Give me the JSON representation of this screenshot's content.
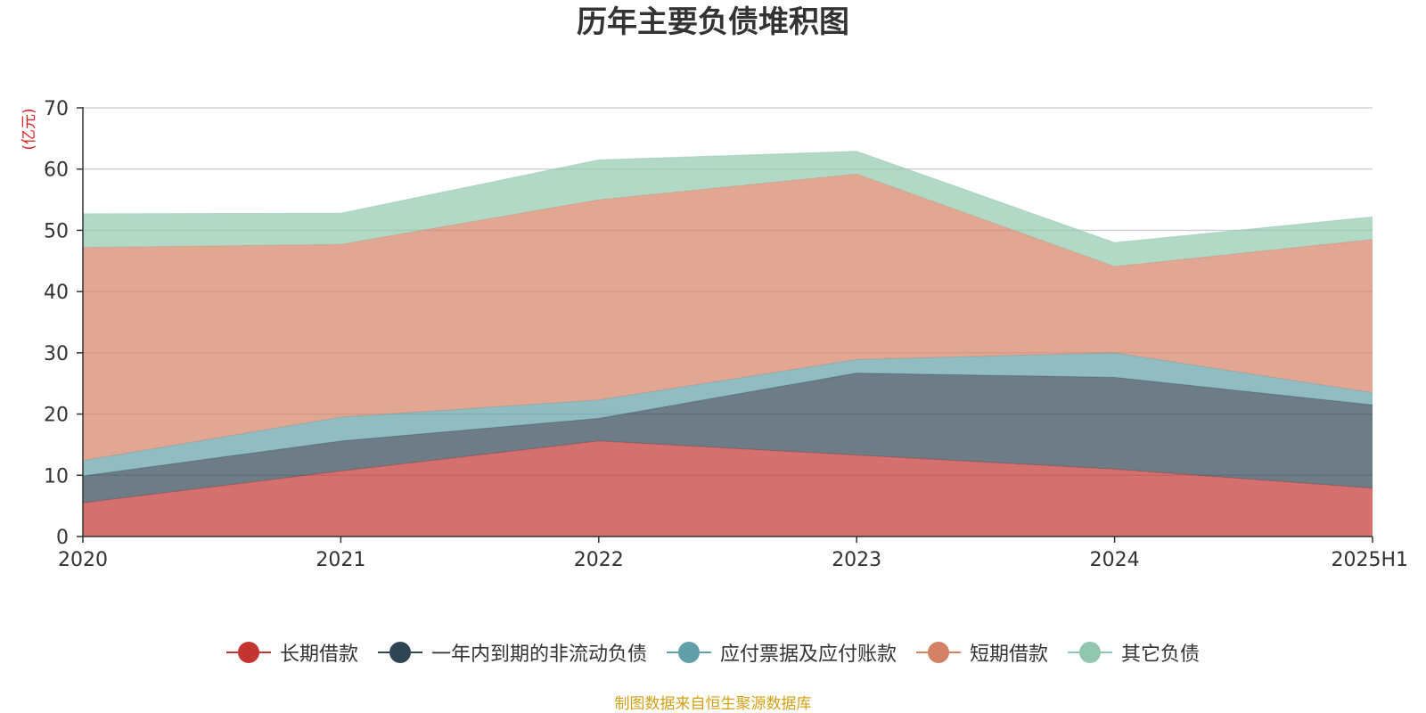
{
  "colors": {
    "unit": "#e02020",
    "source": "#d4a017",
    "axis": "#333333",
    "grid": "#cccccc"
  },
  "chart_data": {
    "type": "area",
    "stacked": true,
    "title": "历年主要负债堆积图",
    "ylabel": "(亿元)",
    "categories": [
      "2020",
      "2021",
      "2022",
      "2023",
      "2024",
      "2025H1"
    ],
    "ylim": [
      0,
      70
    ],
    "yticks": [
      0,
      10,
      20,
      30,
      40,
      50,
      60,
      70
    ],
    "grid": true,
    "legend_position": "bottom",
    "series": [
      {
        "name": "长期借款",
        "color": "#c23531",
        "values": [
          5.5,
          10.7,
          15.6,
          13.3,
          11.0,
          7.9
        ]
      },
      {
        "name": "一年内到期的非流动负债",
        "color": "#2f4554",
        "values": [
          4.4,
          4.9,
          3.7,
          13.4,
          15.0,
          13.6
        ]
      },
      {
        "name": "应付票据及应付账款",
        "color": "#61a0a8",
        "values": [
          2.5,
          3.9,
          3.0,
          2.2,
          4.0,
          2.0
        ]
      },
      {
        "name": "短期借款",
        "color": "#d48265",
        "values": [
          34.8,
          28.2,
          32.7,
          30.3,
          14.1,
          25.0
        ]
      },
      {
        "name": "其它负债",
        "color": "#91c7ae",
        "values": [
          5.5,
          5.1,
          6.5,
          3.7,
          3.9,
          3.7
        ]
      }
    ]
  },
  "source_note": "制图数据来自恒生聚源数据库"
}
